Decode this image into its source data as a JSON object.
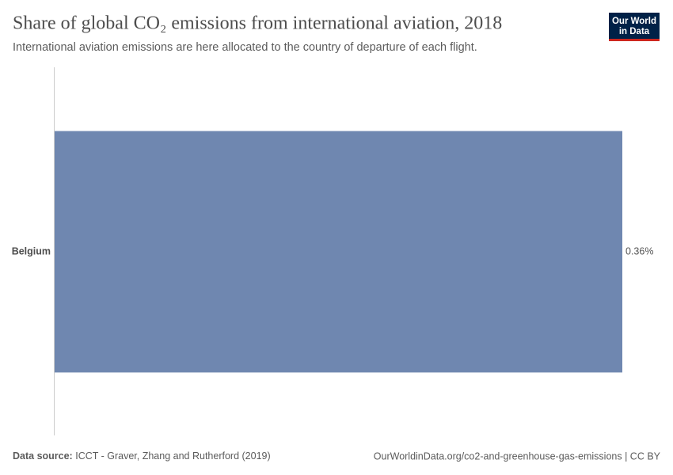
{
  "chart_data": {
    "type": "bar",
    "orientation": "horizontal",
    "title": "Share of global CO₂ emissions from international aviation, 2018",
    "subtitle": "International aviation emissions are here allocated to the country of departure of each flight.",
    "categories": [
      "Belgium"
    ],
    "values": [
      0.36
    ],
    "value_labels": [
      "0.36%"
    ],
    "color": "#6f87b0"
  },
  "footer": {
    "source_label": "Data source:",
    "source": "ICCT - Graver, Zhang and Rutherford (2019)",
    "url": "OurWorldinData.org/co2-and-greenhouse-gas-emissions | CC BY"
  },
  "logo": {
    "line1": "Our World",
    "line2": "in Data"
  }
}
